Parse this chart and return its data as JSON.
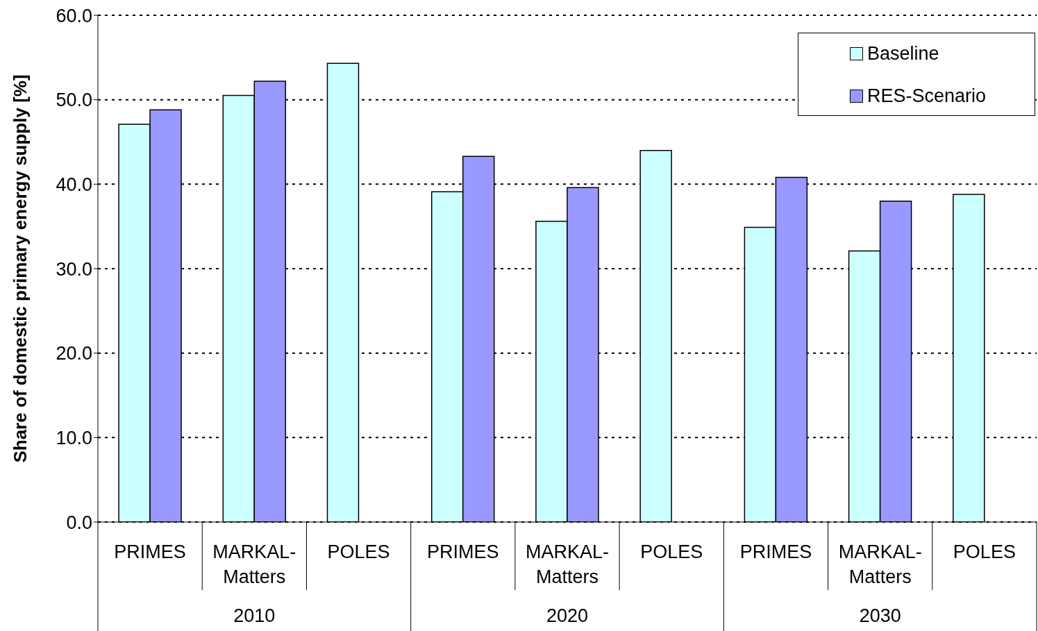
{
  "chart_data": {
    "type": "bar",
    "ylabel": "Share of domestic primary energy supply [%]",
    "categories": [
      "PRIMES",
      "MARKAL-Matters",
      "POLES",
      "PRIMES",
      "MARKAL-Matters",
      "POLES",
      "PRIMES",
      "MARKAL-Matters",
      "POLES"
    ],
    "series": [
      {
        "name": "Baseline",
        "color": "#ccffff",
        "values": [
          47.1,
          50.5,
          54.3,
          39.1,
          35.6,
          44.0,
          34.9,
          32.1,
          38.8
        ]
      },
      {
        "name": "RES-Scenario",
        "color": "#9999ff",
        "values": [
          48.8,
          52.2,
          null,
          43.3,
          39.6,
          null,
          40.8,
          38.0,
          null
        ]
      }
    ],
    "ylim": [
      0,
      60
    ],
    "yticks": [
      {
        "value": 0,
        "label": "0.0"
      },
      {
        "value": 10,
        "label": "10.0"
      },
      {
        "value": 20,
        "label": "20.0"
      },
      {
        "value": 30,
        "label": "30.0"
      },
      {
        "value": 40,
        "label": "40.0"
      },
      {
        "value": 50,
        "label": "50.0"
      },
      {
        "value": 60,
        "label": "60.0"
      }
    ],
    "annotations": [
      "2010",
      "2020",
      "2030"
    ],
    "grid": "y",
    "legend": "top right"
  }
}
